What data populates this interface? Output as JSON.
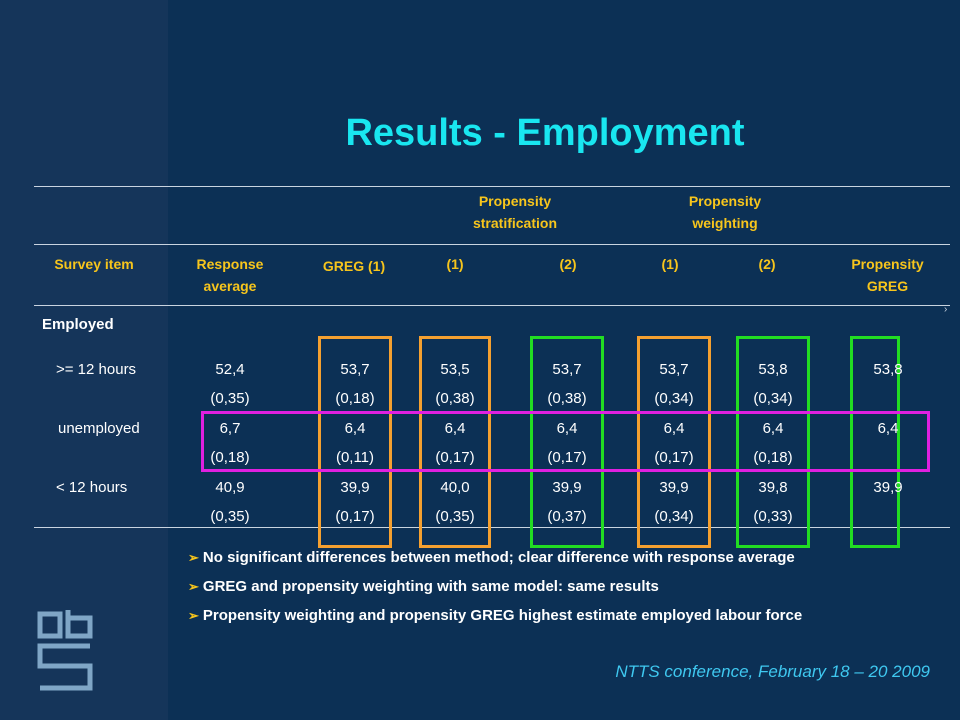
{
  "title": "Results - Employment",
  "group_headers": [
    {
      "text": "Propensity stratification"
    },
    {
      "text": "Propensity weighting"
    }
  ],
  "columns": [
    {
      "text": "Survey item"
    },
    {
      "text": "Response average"
    },
    {
      "text": "GREG (1)"
    },
    {
      "text": "(1)"
    },
    {
      "text": "(2)"
    },
    {
      "text": "(1)"
    },
    {
      "text": "(2)"
    },
    {
      "text": "Propensity GREG"
    }
  ],
  "section": "Employed",
  "rows": [
    {
      "label": ">= 12 hours",
      "values": [
        "52,4",
        "53,7",
        "53,5",
        "53,7",
        "53,7",
        "53,8",
        "53,8"
      ],
      "se": [
        "(0,35)",
        "(0,18)",
        "(0,38)",
        "(0,38)",
        "(0,34)",
        "(0,34)",
        ""
      ]
    },
    {
      "label": "unemployed",
      "values": [
        "6,7",
        "6,4",
        "6,4",
        "6,4",
        "6,4",
        "6,4",
        "6,4"
      ],
      "se": [
        "(0,18)",
        "(0,11)",
        "(0,17)",
        "(0,17)",
        "(0,17)",
        "(0,18)",
        ""
      ]
    },
    {
      "label": "< 12 hours",
      "values": [
        "40,9",
        "39,9",
        "40,0",
        "39,9",
        "39,9",
        "39,8",
        "39,9"
      ],
      "se": [
        "(0,35)",
        "(0,17)",
        "(0,35)",
        "(0,37)",
        "(0,34)",
        "(0,33)",
        ""
      ]
    }
  ],
  "bullets": [
    "No significant differences between method; clear difference with response average",
    "GREG and propensity weighting with same model: same results",
    "Propensity weighting and propensity GREG highest estimate employed labour force"
  ],
  "footer": "NTTS conference, February 18 – 20 2009",
  "colors": {
    "title": "#19e6f0",
    "header": "#f7c51c",
    "orange_box": "#f5a030",
    "green_box": "#22dd22",
    "magenta_box": "#e020e0"
  },
  "icons": {
    "bullet": "arrow-bullet",
    "logo": "cbs-logo"
  }
}
